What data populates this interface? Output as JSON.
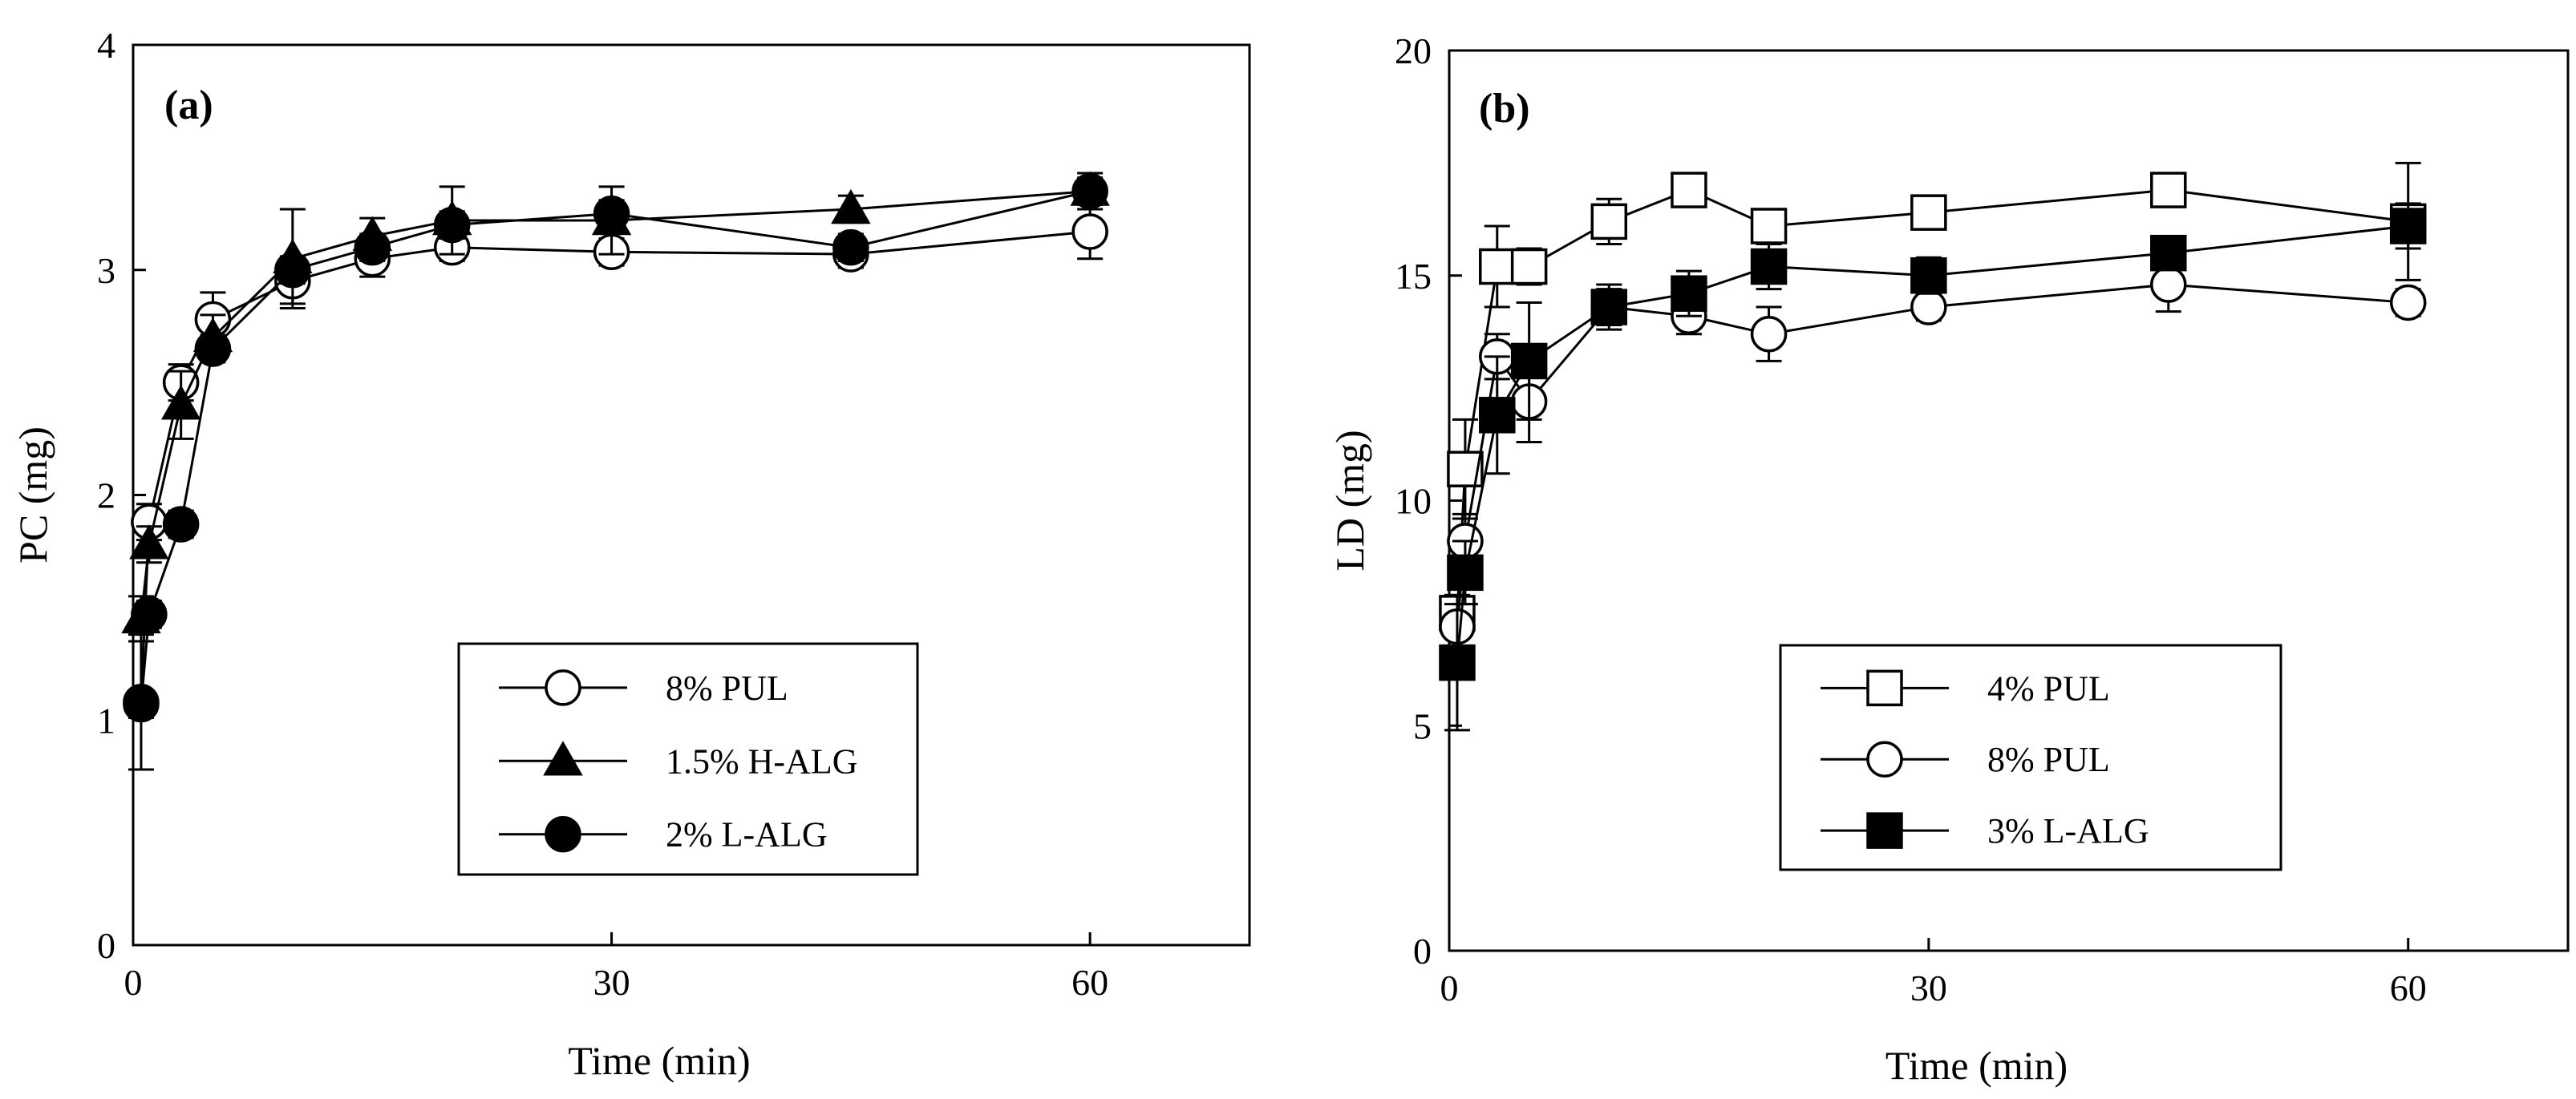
{
  "chart_data": [
    {
      "type": "line",
      "panel_label": "(a)",
      "xlabel": "Time (min)",
      "ylabel": "PC (mg)",
      "xlim": [
        0,
        70
      ],
      "ylim": [
        0,
        4
      ],
      "xticks": [
        0,
        30,
        60
      ],
      "yticks": [
        0,
        1,
        2,
        3,
        4
      ],
      "legend_position": "bottom-right",
      "series": [
        {
          "name": "8% PUL",
          "marker": "open-circle",
          "x": [
            0.5,
            1,
            3,
            5,
            10,
            15,
            20,
            30,
            45,
            60
          ],
          "y": [
            1.08,
            1.88,
            2.5,
            2.78,
            2.95,
            3.05,
            3.1,
            3.08,
            3.07,
            3.17
          ],
          "err": [
            0.3,
            0.08,
            0.08,
            0.12,
            0.1,
            0.08,
            0.06,
            0.06,
            0.06,
            0.12
          ]
        },
        {
          "name": "1.5% H-ALG",
          "marker": "filled-triangle",
          "x": [
            0.5,
            1,
            3,
            5,
            10,
            15,
            20,
            30,
            45,
            60
          ],
          "y": [
            1.45,
            1.78,
            2.4,
            2.7,
            3.05,
            3.15,
            3.22,
            3.22,
            3.27,
            3.35
          ],
          "err": [
            0.1,
            0.08,
            0.15,
            0.1,
            0.22,
            0.08,
            0.15,
            0.15,
            0.06,
            0.08
          ]
        },
        {
          "name": "2% L-ALG",
          "marker": "filled-circle",
          "x": [
            0.5,
            1,
            3,
            5,
            10,
            15,
            20,
            30,
            45,
            60
          ],
          "y": [
            1.07,
            1.47,
            1.87,
            2.65,
            3.0,
            3.1,
            3.2,
            3.25,
            3.1,
            3.35
          ],
          "err": [
            0.06,
            0.06,
            0.06,
            0.06,
            0.06,
            0.06,
            0.06,
            0.06,
            0.06,
            0.06
          ]
        }
      ]
    },
    {
      "type": "line",
      "panel_label": "(b)",
      "xlabel": "Time (min)",
      "ylabel": "LD (mg)",
      "xlim": [
        0,
        70
      ],
      "ylim": [
        0,
        20
      ],
      "xticks": [
        0,
        30,
        60
      ],
      "yticks": [
        0,
        5,
        10,
        15,
        20
      ],
      "legend_position": "bottom-right",
      "series": [
        {
          "name": "4% PUL",
          "marker": "open-square",
          "x": [
            0.5,
            1,
            3,
            5,
            10,
            15,
            20,
            30,
            45,
            60
          ],
          "y": [
            7.5,
            10.7,
            15.2,
            15.2,
            16.2,
            16.9,
            16.1,
            16.4,
            16.9,
            16.2
          ],
          "err": [
            0.4,
            1.1,
            0.9,
            0.4,
            0.5,
            0.3,
            0.3,
            0.3,
            0.3,
            1.3
          ]
        },
        {
          "name": "8% PUL",
          "marker": "open-circle",
          "x": [
            0.5,
            1,
            3,
            5,
            10,
            15,
            20,
            30,
            45,
            60
          ],
          "y": [
            7.2,
            9.1,
            13.2,
            12.2,
            14.3,
            14.1,
            13.7,
            14.3,
            14.8,
            14.4
          ],
          "err": [
            0.5,
            0.6,
            0.5,
            0.9,
            0.4,
            0.4,
            0.6,
            0.3,
            0.6,
            0.3
          ]
        },
        {
          "name": "3% L-ALG",
          "marker": "filled-square",
          "x": [
            0.5,
            1,
            3,
            5,
            10,
            15,
            20,
            30,
            45,
            60
          ],
          "y": [
            6.4,
            8.4,
            11.9,
            13.1,
            14.3,
            14.6,
            15.2,
            15.0,
            15.5,
            16.1
          ],
          "err": [
            1.5,
            0.7,
            1.3,
            1.3,
            0.5,
            0.5,
            0.5,
            0.4,
            0.3,
            0.5
          ]
        }
      ]
    }
  ]
}
